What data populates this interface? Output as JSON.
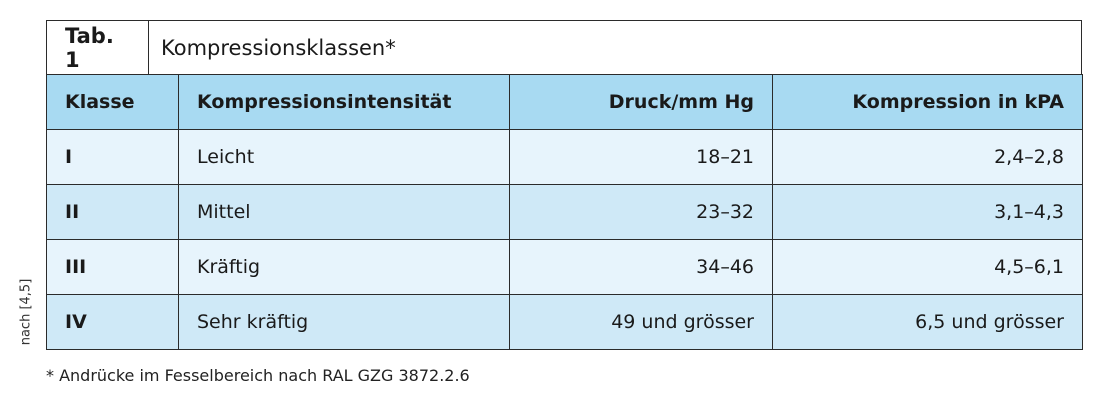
{
  "header": {
    "tab_label": "Tab. 1",
    "title": "Kompressionsklassen*"
  },
  "table": {
    "columns": [
      "Klasse",
      "Kompressionsintensität",
      "Druck/mm Hg",
      "Kompression in kPA"
    ],
    "rows": [
      [
        "I",
        "Leicht",
        "18–21",
        "2,4–2,8"
      ],
      [
        "II",
        "Mittel",
        "23–32",
        "3,1–4,3"
      ],
      [
        "III",
        "Kräftig",
        "34–46",
        "4,5–6,1"
      ],
      [
        "IV",
        "Sehr kräftig",
        "49 und grösser",
        "6,5 und grösser"
      ]
    ]
  },
  "footnote": "* Andrücke im Fesselbereich nach RAL GZG 3872.2.6",
  "source": "nach [4,5]"
}
